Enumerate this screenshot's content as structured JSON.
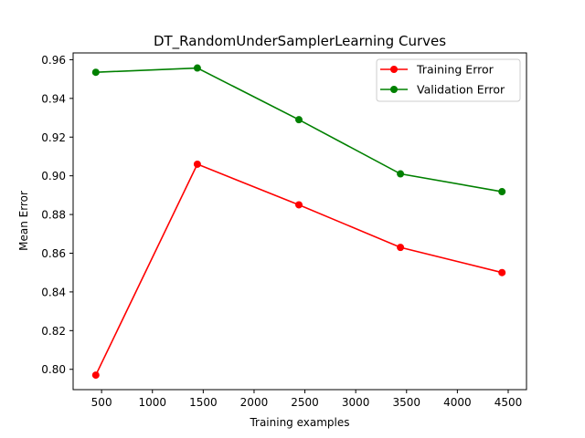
{
  "chart_data": {
    "type": "line",
    "title": "DT_RandomUnderSamplerLearning Curves",
    "xlabel": "Training examples",
    "ylabel": "Mean Error",
    "xlim": [
      220,
      4680
    ],
    "ylim": [
      0.7895,
      0.9635
    ],
    "xticks": [
      500,
      1000,
      1500,
      2000,
      2500,
      3000,
      3500,
      4000,
      4500
    ],
    "yticks": [
      0.8,
      0.82,
      0.84,
      0.86,
      0.88,
      0.9,
      0.92,
      0.94,
      0.96
    ],
    "grid": false,
    "legend_position": "upper right",
    "x": [
      443,
      1442,
      2441,
      3440,
      4439
    ],
    "series": [
      {
        "name": "Training Error",
        "color": "#ff0000",
        "marker": "circle",
        "values": [
          0.797,
          0.906,
          0.885,
          0.863,
          0.85
        ]
      },
      {
        "name": "Validation Error",
        "color": "#008000",
        "marker": "circle",
        "values": [
          0.9535,
          0.9557,
          0.929,
          0.901,
          0.8918
        ]
      }
    ]
  }
}
